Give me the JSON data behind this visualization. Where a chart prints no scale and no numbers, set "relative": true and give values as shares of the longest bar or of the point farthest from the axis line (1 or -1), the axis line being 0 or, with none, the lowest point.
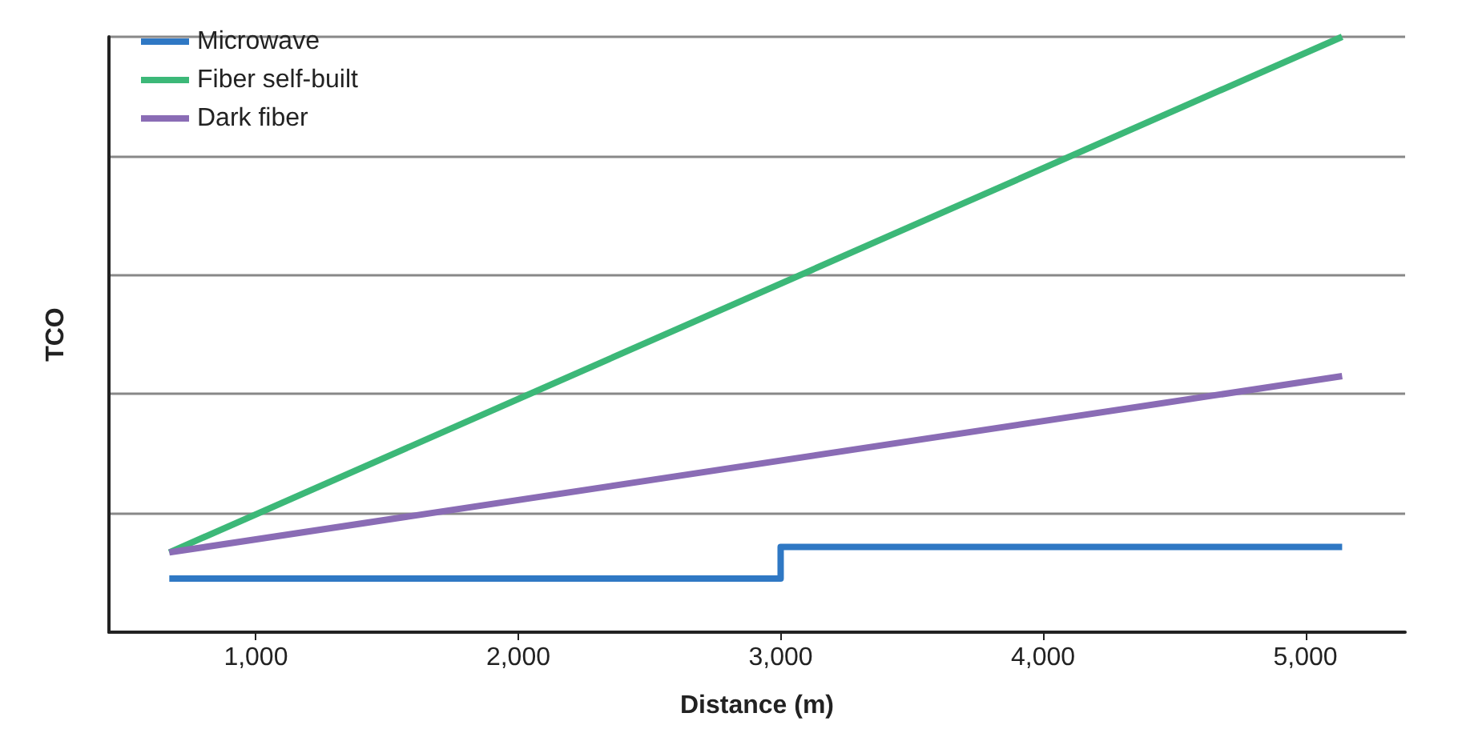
{
  "chart_data": {
    "type": "line",
    "xlabel": "Distance (m)",
    "ylabel": "TCO",
    "relative": true,
    "xlim": [
      440,
      5380
    ],
    "xticks": [
      {
        "value": 1000,
        "label": "1,000"
      },
      {
        "value": 2000,
        "label": "2,000"
      },
      {
        "value": 3000,
        "label": "3,000"
      },
      {
        "value": 4000,
        "label": "4,000"
      },
      {
        "value": 5000,
        "label": "5,000"
      }
    ],
    "grid": "y",
    "legend": "top left",
    "series": [
      {
        "name": "Microwave",
        "type": "step",
        "color": "#2f78c4",
        "x": [
          670,
          3000,
          5140
        ],
        "values": [
          0.09,
          0.143,
          0.143
        ]
      },
      {
        "name": "Fiber self-built",
        "color": "#3cb878",
        "x": [
          670,
          5140
        ],
        "values": [
          0.134,
          1
        ]
      },
      {
        "name": "Dark fiber",
        "color": "#8a6cb5",
        "x": [
          670,
          5140
        ],
        "values": [
          0.134,
          0.43
        ]
      }
    ]
  }
}
